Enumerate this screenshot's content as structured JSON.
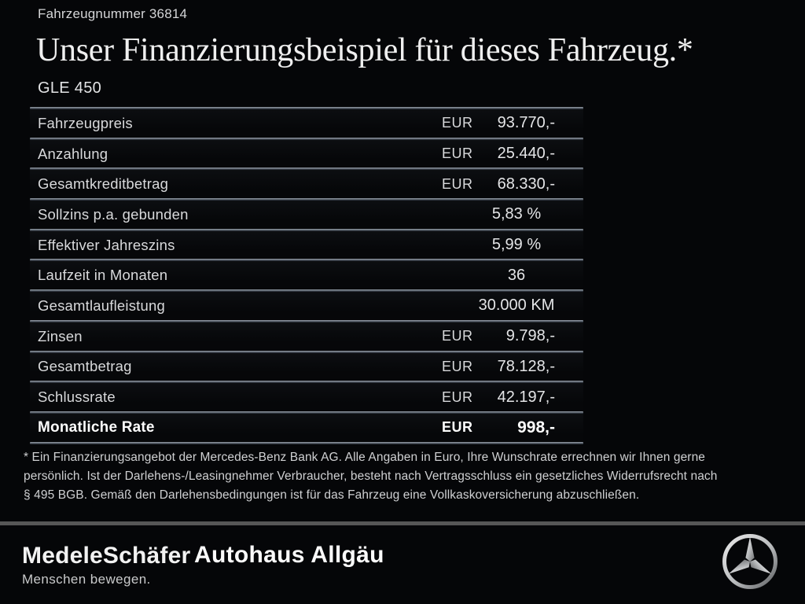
{
  "header": {
    "vehicle_number": "Fahrzeugnummer 36814",
    "title": "Unser Finanzierungsbeispiel für dieses Fahrzeug.*",
    "model": "GLE 450"
  },
  "financing_table": {
    "rows": [
      {
        "label": "Fahrzeugpreis",
        "currency": "EUR",
        "value": "93.770,-"
      },
      {
        "label": "Anzahlung",
        "currency": "EUR",
        "value": "25.440,-"
      },
      {
        "label": "Gesamtkreditbetrag",
        "currency": "EUR",
        "value": "68.330,-"
      },
      {
        "label": "Sollzins p.a. gebunden",
        "currency": "",
        "value": "5,83 %"
      },
      {
        "label": "Effektiver Jahreszins",
        "currency": "",
        "value": "5,99 %"
      },
      {
        "label": "Laufzeit in Monaten",
        "currency": "",
        "value": "36"
      },
      {
        "label": "Gesamtlaufleistung",
        "currency": "",
        "value": "30.000 KM"
      },
      {
        "label": "Zinsen",
        "currency": "EUR",
        "value": "9.798,-"
      },
      {
        "label": "Gesamtbetrag",
        "currency": "EUR",
        "value": "78.128,-"
      },
      {
        "label": "Schlussrate",
        "currency": "EUR",
        "value": "42.197,-"
      },
      {
        "label": "Monatliche Rate",
        "currency": "EUR",
        "value": "998,-",
        "emphasis": true
      }
    ]
  },
  "footnote": {
    "lines": [
      "* Ein Finanzierungsangebot der Mercedes-Benz Bank AG. Alle Angaben in Euro, Ihre Wunschrate errechnen wir Ihnen gerne",
      "persönlich. Ist der Darlehens-/Leasingnehmer Verbraucher, besteht nach Vertragsschluss ein gesetzliches Widerrufsrecht nach",
      "§ 495 BGB. Gemäß den Darlehensbedingungen ist für das Fahrzeug eine Vollkaskoversicherung abzuschließen."
    ]
  },
  "footer": {
    "dealer_logo": "MedeleSchäfer",
    "dealer_tagline": "Menschen bewegen.",
    "dealer_name_2": "Autohaus Allgäu",
    "brand_icon": "mercedes-star-icon"
  },
  "colors": {
    "background": "#050608",
    "table_line": "#99a1ab",
    "footer_rule": "#565656",
    "text_primary": "#d9dadc",
    "value_text": "#e4e5e7",
    "emphasis_text": "#ffffff"
  }
}
